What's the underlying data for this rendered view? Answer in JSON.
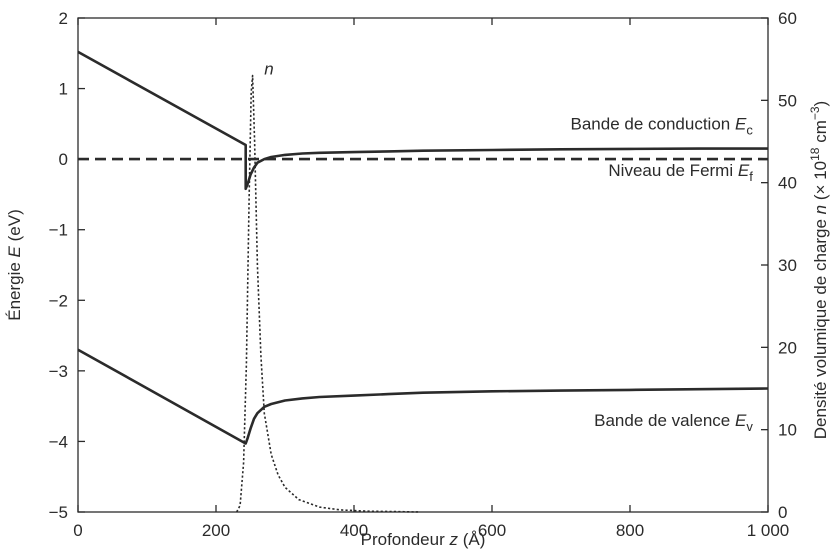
{
  "chart_data": {
    "type": "line",
    "xlabel_prefix": "Profondeur ",
    "xlabel_var": "z",
    "xlabel_unit": " (Å)",
    "ylabel_prefix": "Énergie ",
    "ylabel_var": "E",
    "ylabel_unit": " (eV)",
    "y2label_prefix": "Densité volumique de charge ",
    "y2label_var": "n",
    "y2label_unit_a": " (× 10",
    "y2label_unit_exp": "18",
    "y2label_unit_b": " cm",
    "y2label_unit_exp2": "−3",
    "y2label_unit_c": ")",
    "xlim": [
      0,
      1000
    ],
    "ylim": [
      -5,
      2
    ],
    "y2lim": [
      0,
      60
    ],
    "x_ticks": [
      0,
      200,
      400,
      600,
      800,
      1000
    ],
    "x_tick_labels": [
      "0",
      "200",
      "400",
      "600",
      "800",
      "1 000"
    ],
    "y_ticks": [
      -5,
      -4,
      -3,
      -2,
      -1,
      0,
      1,
      2
    ],
    "y_tick_labels": [
      "−5",
      "−4",
      "−3",
      "−2",
      "−1",
      "0",
      "1",
      "2"
    ],
    "y2_ticks": [
      0,
      10,
      20,
      30,
      40,
      50,
      60
    ],
    "y2_tick_labels": [
      "0",
      "10",
      "20",
      "30",
      "40",
      "50",
      "60"
    ],
    "grid": false,
    "series": [
      {
        "key": "conduction",
        "axis": "left",
        "style": "solid",
        "x": [
          0,
          243,
          243,
          246,
          250,
          255,
          260,
          270,
          280,
          300,
          325,
          350,
          400,
          450,
          500,
          600,
          700,
          800,
          900,
          1000
        ],
        "y": [
          1.52,
          0.2,
          -0.42,
          -0.35,
          -0.22,
          -0.12,
          -0.05,
          0.0,
          0.03,
          0.06,
          0.08,
          0.09,
          0.1,
          0.11,
          0.12,
          0.13,
          0.14,
          0.145,
          0.15,
          0.15
        ]
      },
      {
        "key": "fermi",
        "axis": "left",
        "style": "dashed",
        "x": [
          0,
          1000
        ],
        "y": [
          0,
          0
        ]
      },
      {
        "key": "valence",
        "axis": "left",
        "style": "solid",
        "x": [
          0,
          243,
          246,
          250,
          255,
          260,
          270,
          280,
          300,
          325,
          350,
          400,
          450,
          500,
          600,
          700,
          800,
          900,
          1000
        ],
        "y": [
          -2.7,
          -4.03,
          -3.95,
          -3.82,
          -3.68,
          -3.6,
          -3.51,
          -3.47,
          -3.42,
          -3.39,
          -3.37,
          -3.35,
          -3.33,
          -3.31,
          -3.29,
          -3.28,
          -3.27,
          -3.26,
          -3.25
        ]
      },
      {
        "key": "n",
        "axis": "right",
        "style": "dotted",
        "x": [
          230,
          235,
          240,
          244,
          248,
          251,
          253,
          256,
          260,
          265,
          270,
          280,
          290,
          300,
          320,
          350,
          380,
          420,
          460,
          495
        ],
        "y": [
          0,
          0.8,
          6,
          18,
          38,
          51,
          53,
          45,
          30,
          19,
          12,
          7,
          4.5,
          3,
          1.5,
          0.6,
          0.25,
          0.1,
          0.05,
          0
        ]
      }
    ],
    "annotations": [
      {
        "key": "n",
        "text_var": "n",
        "text_sub": "",
        "x": 270,
        "y": 1.2
      },
      {
        "key": "conduction",
        "text_prefix": "Bande de conduction ",
        "text_var": "E",
        "text_sub": "c",
        "x": 978,
        "y": 0.42
      },
      {
        "key": "fermi",
        "text_prefix": "Niveau de Fermi ",
        "text_var": "E",
        "text_sub": "f",
        "x": 978,
        "y": -0.24
      },
      {
        "key": "valence",
        "text_prefix": "Bande de valence ",
        "text_var": "E",
        "text_sub": "v",
        "x": 978,
        "y": -3.78
      }
    ]
  }
}
